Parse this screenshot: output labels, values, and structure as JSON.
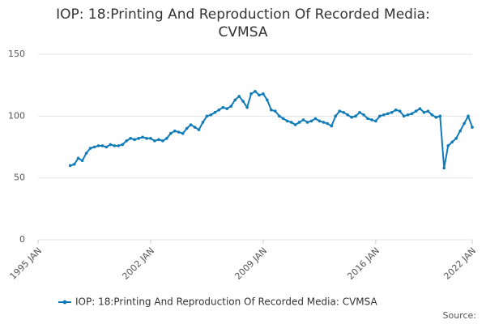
{
  "chart_data": {
    "type": "line",
    "title": "IOP: 18:Printing And Reproduction Of Recorded Media: CVMSA",
    "source": "Source:",
    "x": [
      "1997-01",
      "1997-04",
      "1997-07",
      "1997-10",
      "1998-01",
      "1998-04",
      "1998-07",
      "1998-10",
      "1999-01",
      "1999-04",
      "1999-07",
      "1999-10",
      "2000-01",
      "2000-04",
      "2000-07",
      "2000-10",
      "2001-01",
      "2001-04",
      "2001-07",
      "2001-10",
      "2002-01",
      "2002-04",
      "2002-07",
      "2002-10",
      "2003-01",
      "2003-04",
      "2003-07",
      "2003-10",
      "2004-01",
      "2004-04",
      "2004-07",
      "2004-10",
      "2005-01",
      "2005-04",
      "2005-07",
      "2005-10",
      "2006-01",
      "2006-04",
      "2006-07",
      "2006-10",
      "2007-01",
      "2007-04",
      "2007-07",
      "2007-10",
      "2008-01",
      "2008-04",
      "2008-07",
      "2008-10",
      "2009-01",
      "2009-04",
      "2009-07",
      "2009-10",
      "2010-01",
      "2010-04",
      "2010-07",
      "2010-10",
      "2011-01",
      "2011-04",
      "2011-07",
      "2011-10",
      "2012-01",
      "2012-04",
      "2012-07",
      "2012-10",
      "2013-01",
      "2013-04",
      "2013-07",
      "2013-10",
      "2014-01",
      "2014-04",
      "2014-07",
      "2014-10",
      "2015-01",
      "2015-04",
      "2015-07",
      "2015-10",
      "2016-01",
      "2016-04",
      "2016-07",
      "2016-10",
      "2017-01",
      "2017-04",
      "2017-07",
      "2017-10",
      "2018-01",
      "2018-04",
      "2018-07",
      "2018-10",
      "2019-01",
      "2019-04",
      "2019-07",
      "2019-10",
      "2020-01",
      "2020-04",
      "2020-07",
      "2020-10",
      "2021-01",
      "2021-04",
      "2021-07",
      "2021-10",
      "2022-01"
    ],
    "series": [
      {
        "name": "IOP: 18:Printing And Reproduction Of Recorded Media: CVMSA",
        "color": "#0f7bb8",
        "values": [
          60,
          61,
          66,
          64,
          70,
          74,
          75,
          76,
          76,
          75,
          77,
          76,
          76,
          77,
          80,
          82,
          81,
          82,
          83,
          82,
          82,
          80,
          81,
          80,
          82,
          86,
          88,
          87,
          86,
          90,
          93,
          91,
          89,
          95,
          100,
          101,
          103,
          105,
          107,
          106,
          108,
          113,
          116,
          112,
          107,
          118,
          120,
          117,
          118,
          113,
          105,
          104,
          100,
          98,
          96,
          95,
          93,
          95,
          97,
          95,
          96,
          98,
          96,
          95,
          94,
          92,
          100,
          104,
          103,
          101,
          99,
          100,
          103,
          101,
          98,
          97,
          96,
          100,
          101,
          102,
          103,
          105,
          104,
          100,
          101,
          102,
          104,
          106,
          103,
          104,
          101,
          99,
          100,
          58,
          76,
          79,
          82,
          88,
          94,
          100,
          91
        ]
      }
    ],
    "xlim": [
      "1995-01",
      "2022-01"
    ],
    "xticks": [
      {
        "value": "1995-01",
        "label": "1995 JAN"
      },
      {
        "value": "2002-01",
        "label": "2002 JAN"
      },
      {
        "value": "2009-01",
        "label": "2009 JAN"
      },
      {
        "value": "2016-01",
        "label": "2016 JAN"
      },
      {
        "value": "2022-01",
        "label": "2022 JAN"
      }
    ],
    "ylim": [
      0,
      150
    ],
    "yticks": [
      0,
      50,
      100,
      150
    ],
    "grid": true
  }
}
